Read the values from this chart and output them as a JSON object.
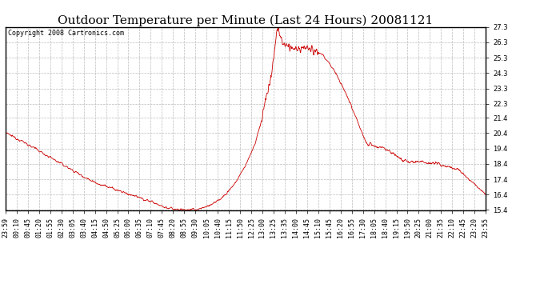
{
  "title": "Outdoor Temperature per Minute (Last 24 Hours) 20081121",
  "copyright_text": "Copyright 2008 Cartronics.com",
  "line_color": "#cc0000",
  "background_color": "#ffffff",
  "grid_color": "#bbbbbb",
  "yticks": [
    15.4,
    16.4,
    17.4,
    18.4,
    19.4,
    20.4,
    21.4,
    22.3,
    23.3,
    24.3,
    25.3,
    26.3,
    27.3
  ],
  "ylim": [
    15.4,
    27.3
  ],
  "xtick_labels": [
    "23:59",
    "00:10",
    "00:45",
    "01:20",
    "01:55",
    "02:30",
    "03:05",
    "03:40",
    "04:15",
    "04:50",
    "05:25",
    "06:00",
    "06:35",
    "07:10",
    "07:45",
    "08:20",
    "08:55",
    "09:30",
    "10:05",
    "10:40",
    "11:15",
    "11:50",
    "12:25",
    "13:00",
    "13:25",
    "13:35",
    "14:00",
    "14:45",
    "15:10",
    "15:45",
    "16:20",
    "16:55",
    "17:30",
    "18:05",
    "18:40",
    "19:15",
    "19:50",
    "20:25",
    "21:00",
    "21:35",
    "22:10",
    "22:45",
    "23:20",
    "23:55"
  ],
  "title_fontsize": 11,
  "copyright_fontsize": 6,
  "tick_fontsize": 6,
  "n_points": 1440,
  "keypoints_t": [
    0,
    40,
    80,
    120,
    160,
    200,
    240,
    280,
    320,
    360,
    400,
    430,
    455,
    480,
    510,
    540,
    570,
    600,
    630,
    660,
    690,
    720,
    750,
    770,
    785,
    800,
    810,
    815,
    820,
    825,
    835,
    850,
    870,
    890,
    910,
    930,
    950,
    970,
    990,
    1020,
    1050,
    1080,
    1110,
    1140,
    1170,
    1195,
    1215,
    1230,
    1250,
    1270,
    1290,
    1310,
    1330,
    1360,
    1390,
    1440
  ],
  "keypoints_v": [
    20.4,
    20.0,
    19.5,
    19.0,
    18.5,
    18.0,
    17.5,
    17.1,
    16.8,
    16.5,
    16.2,
    16.0,
    15.8,
    15.55,
    15.45,
    15.42,
    15.41,
    15.6,
    15.9,
    16.4,
    17.2,
    18.3,
    19.8,
    21.5,
    23.0,
    24.5,
    26.5,
    27.3,
    26.9,
    26.5,
    26.2,
    26.0,
    25.8,
    25.9,
    25.9,
    25.7,
    25.5,
    25.0,
    24.3,
    23.0,
    21.5,
    19.8,
    19.5,
    19.4,
    19.0,
    18.6,
    18.5,
    18.6,
    18.5,
    18.4,
    18.4,
    18.3,
    18.2,
    18.0,
    17.4,
    16.4
  ]
}
